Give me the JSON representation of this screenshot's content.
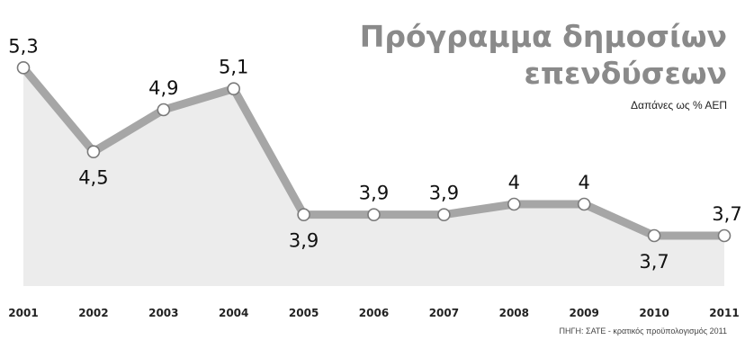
{
  "chart_data": {
    "type": "area",
    "title": "Πρόγραμμα δημοσίων επενδύσεων",
    "title_lines": [
      "Πρόγραμμα δημοσίων",
      "επενδύσεων"
    ],
    "subtitle": "Δαπάνες ως % ΑΕΠ",
    "source": "ΠΗΓΗ: ΣΑΤΕ - κρατικός προϋπολογισμός 2011",
    "categories": [
      "2001",
      "2002",
      "2003",
      "2004",
      "2005",
      "2006",
      "2007",
      "2008",
      "2009",
      "2010",
      "2011"
    ],
    "values": [
      5.3,
      4.5,
      4.9,
      5.1,
      3.9,
      3.9,
      3.9,
      4.0,
      4.0,
      3.7,
      3.7
    ],
    "value_labels": [
      "5,3",
      "4,5",
      "4,9",
      "5,1",
      "3,9",
      "3,9",
      "3,9",
      "4",
      "4",
      "3,7",
      "3,7"
    ],
    "xlabel": "",
    "ylabel": "",
    "ylim": [
      3.4,
      5.5
    ],
    "grid": false,
    "legend": "none",
    "colors": {
      "line": "#a6a6a6",
      "area": "#ececec",
      "marker_fill": "#ffffff",
      "marker_stroke": "#7a7a7a",
      "title": "#8a8a8a"
    }
  }
}
